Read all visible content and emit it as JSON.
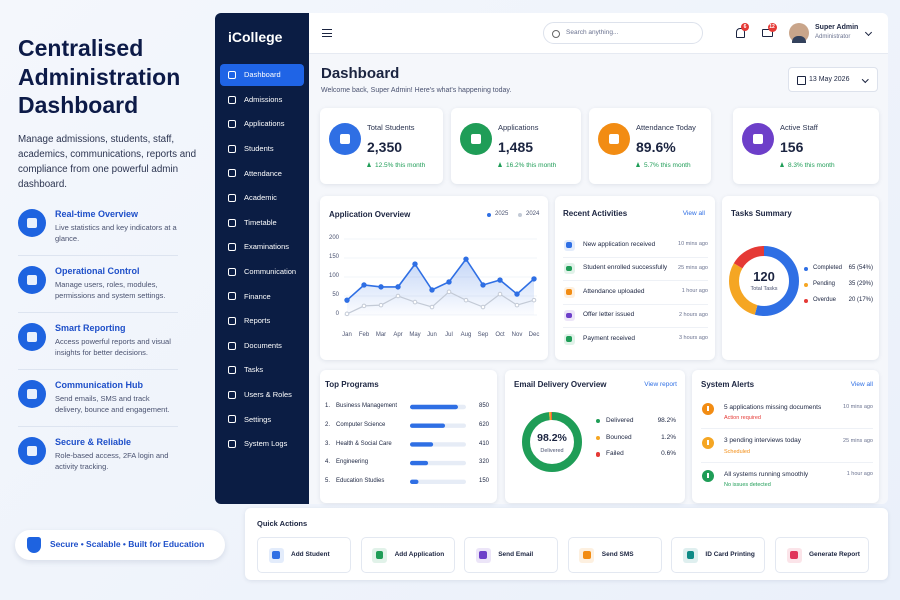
{
  "hero": {
    "title_lines": [
      "Centralised",
      "Administration",
      "Dashboard"
    ],
    "description": "Manage admissions, students, staff, academics, communications, reports and compliance from one powerful admin dashboard.",
    "features": [
      {
        "title": "Real-time Overview",
        "text": "Live statistics and key indicators at a glance."
      },
      {
        "title": "Operational Control",
        "text": "Manage users, roles, modules, permissions and system settings."
      },
      {
        "title": "Smart Reporting",
        "text": "Access powerful reports and visual insights for better decisions."
      },
      {
        "title": "Communication Hub",
        "text": "Send emails, SMS and track delivery, bounce and engagement."
      },
      {
        "title": "Secure & Reliable",
        "text": "Role-based access, 2FA login and activity tracking."
      }
    ],
    "badge": "Secure • Scalable • Built for Education"
  },
  "sidebar": {
    "brand": "iCollege",
    "items": [
      "Dashboard",
      "Admissions",
      "Applications",
      "Students",
      "Attendance",
      "Academic",
      "Timetable",
      "Examinations",
      "Communication",
      "Finance",
      "Reports",
      "Documents",
      "Tasks",
      "Users & Roles",
      "Settings",
      "System Logs"
    ]
  },
  "topbar": {
    "search_placeholder": "Search anything...",
    "notifications": "6",
    "messages": "12",
    "user_name": "Super Admin",
    "user_role": "Administrator"
  },
  "header": {
    "title": "Dashboard",
    "subtitle": "Welcome back, Super Admin! Here's what's happening today.",
    "date": "13 May 2026"
  },
  "stats": [
    {
      "label": "Total Students",
      "value": "2,350",
      "change": "12.5% this month",
      "color": "#2f6fe4"
    },
    {
      "label": "Applications",
      "value": "1,485",
      "change": "16.2% this month",
      "color": "#1f9d57"
    },
    {
      "label": "Attendance Today",
      "value": "89.6%",
      "change": "5.7% this month",
      "color": "#f28c13"
    },
    {
      "label": "Active Staff",
      "value": "156",
      "change": "8.3% this month",
      "color": "#6d3fc9"
    }
  ],
  "application_overview": {
    "type": "line",
    "title": "Application Overview",
    "categories": [
      "Jan",
      "Feb",
      "Mar",
      "Apr",
      "May",
      "Jun",
      "Jul",
      "Aug",
      "Sep",
      "Oct",
      "Nov",
      "Dec"
    ],
    "series": [
      {
        "name": "2025",
        "color": "#2f6fe4",
        "values": [
          39,
          79,
          74,
          74,
          134,
          66,
          87,
          147,
          79,
          92,
          55,
          95
        ]
      },
      {
        "name": "2024",
        "color": "#c3cad6",
        "values": [
          3,
          24,
          26,
          50,
          34,
          21,
          61,
          39,
          21,
          55,
          26,
          39
        ]
      }
    ],
    "ylim": [
      0,
      200
    ],
    "yticks": [
      0,
      50,
      100,
      150,
      200
    ]
  },
  "recent_activities": {
    "title": "Recent Activities",
    "action": "View all",
    "items": [
      {
        "text": "New application received",
        "time": "10 mins ago",
        "color": "#2f6fe4"
      },
      {
        "text": "Student enrolled successfully",
        "time": "25 mins ago",
        "color": "#1f9d57"
      },
      {
        "text": "Attendance uploaded",
        "time": "1 hour ago",
        "color": "#f28c13"
      },
      {
        "text": "Offer letter issued",
        "time": "2 hours ago",
        "color": "#6d3fc9"
      },
      {
        "text": "Payment received",
        "time": "3 hours ago",
        "color": "#1f9d57"
      }
    ]
  },
  "tasks_summary": {
    "type": "pie",
    "title": "Tasks Summary",
    "total": "120",
    "total_label": "Total Tasks",
    "categories": [
      "Completed",
      "Pending",
      "Overdue"
    ],
    "values": [
      65,
      35,
      20
    ],
    "value_labels": [
      "65 (54%)",
      "35 (29%)",
      "20 (17%)"
    ],
    "colors": [
      "#2f6fe4",
      "#f5a623",
      "#e53935"
    ]
  },
  "top_programs": {
    "type": "bar",
    "title": "Top Programs",
    "ranks": [
      "1.",
      "2.",
      "3.",
      "4.",
      "5."
    ],
    "categories": [
      "Business Management",
      "Computer Science",
      "Health & Social Care",
      "Engineering",
      "Education Studies"
    ],
    "values": [
      850,
      620,
      410,
      320,
      150
    ],
    "color": "#2f6fe4"
  },
  "email_delivery": {
    "type": "pie",
    "title": "Email Delivery Overview",
    "action": "View report",
    "categories": [
      "Delivered",
      "Bounced",
      "Failed"
    ],
    "values": [
      98.2,
      1.2,
      0.6
    ],
    "value_labels": [
      "98.2%",
      "1.2%",
      "0.6%"
    ],
    "colors": [
      "#1f9d57",
      "#f5a623",
      "#e53935"
    ]
  },
  "system_alerts": {
    "title": "System Alerts",
    "action": "View all",
    "items": [
      {
        "title": "5 applications missing documents",
        "status": "Action required",
        "time": "10 mins ago",
        "color": "#f28c13",
        "status_color": "#e53935"
      },
      {
        "title": "3 pending interviews today",
        "status": "Scheduled",
        "time": "25 mins ago",
        "color": "#f5a623",
        "status_color": "#f28c13"
      },
      {
        "title": "All systems running smoothly",
        "status": "No issues detected",
        "time": "1 hour ago",
        "color": "#1f9d57",
        "status_color": "#1f9d57"
      }
    ]
  },
  "quick_actions": {
    "title": "Quick Actions",
    "items": [
      "Add Student",
      "Add Application",
      "Send Email",
      "Send SMS",
      "ID Card Printing",
      "Generate Report"
    ],
    "colors": [
      "#2f6fe4",
      "#1f9d57",
      "#6d3fc9",
      "#f28c13",
      "#0f8a86",
      "#e0355a"
    ]
  }
}
